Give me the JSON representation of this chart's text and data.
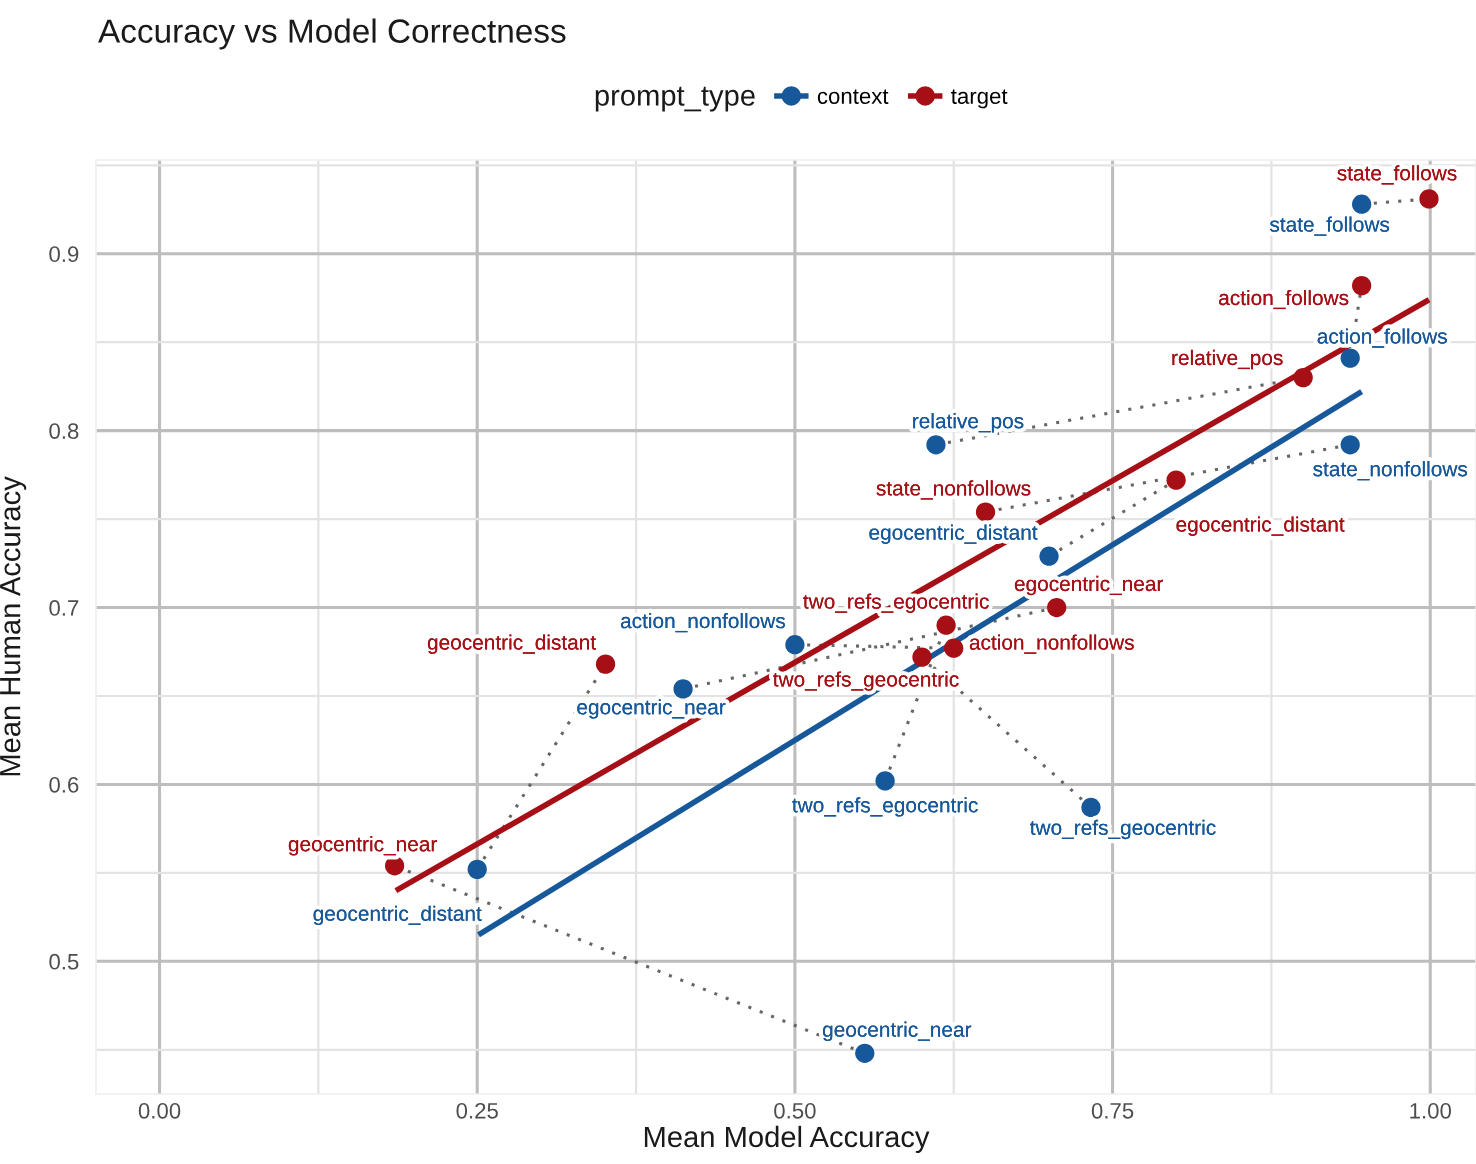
{
  "chart_data": {
    "type": "scatter",
    "title": "Accuracy vs Model Correctness",
    "xlabel": "Mean Model Accuracy",
    "ylabel": "Mean Human Accuracy",
    "legend_title": "prompt_type",
    "legend": "top",
    "grid": true,
    "xlim": [
      -0.05,
      1.036
    ],
    "ylim": [
      0.425,
      0.953
    ],
    "xticks": [
      {
        "value": 0,
        "label": "0.00"
      },
      {
        "value": 0.125,
        "label": null
      },
      {
        "value": 0.25,
        "label": "0.25"
      },
      {
        "value": 0.375,
        "label": null
      },
      {
        "value": 0.5,
        "label": "0.50"
      },
      {
        "value": 0.625,
        "label": null
      },
      {
        "value": 0.75,
        "label": "0.75"
      },
      {
        "value": 0.875,
        "label": null
      },
      {
        "value": 1,
        "label": "1.00"
      }
    ],
    "yticks": [
      {
        "value": 0.45,
        "label": null
      },
      0.5,
      {
        "value": 0.55,
        "label": null
      },
      0.6,
      {
        "value": 0.65,
        "label": null
      },
      0.7,
      {
        "value": 0.75,
        "label": null
      },
      0.8,
      {
        "value": 0.85,
        "label": null
      },
      0.9,
      {
        "value": 0.95,
        "label": null
      }
    ],
    "series": [
      {
        "type": "line",
        "color": "#666666",
        "line_style": "dotted",
        "x": [
          0.946,
          0.999
        ],
        "values": [
          0.928,
          0.931
        ]
      },
      {
        "type": "line",
        "color": "#666666",
        "line_style": "dotted",
        "x": [
          0.937,
          0.946
        ],
        "values": [
          0.841,
          0.882
        ]
      },
      {
        "type": "line",
        "color": "#666666",
        "line_style": "dotted",
        "x": [
          0.611,
          0.9
        ],
        "values": [
          0.792,
          0.83
        ]
      },
      {
        "type": "line",
        "color": "#666666",
        "line_style": "dotted",
        "x": [
          0.937,
          0.65
        ],
        "values": [
          0.792,
          0.754
        ]
      },
      {
        "type": "line",
        "color": "#666666",
        "line_style": "dotted",
        "x": [
          0.7,
          0.8
        ],
        "values": [
          0.729,
          0.772
        ]
      },
      {
        "type": "line",
        "color": "#666666",
        "line_style": "dotted",
        "x": [
          0.412,
          0.706
        ],
        "values": [
          0.654,
          0.7
        ]
      },
      {
        "type": "line",
        "color": "#666666",
        "line_style": "dotted",
        "x": [
          0.5,
          0.625
        ],
        "values": [
          0.679,
          0.677
        ]
      },
      {
        "type": "line",
        "color": "#666666",
        "line_style": "dotted",
        "x": [
          0.571,
          0.619
        ],
        "values": [
          0.602,
          0.69
        ]
      },
      {
        "type": "line",
        "color": "#666666",
        "line_style": "dotted",
        "x": [
          0.733,
          0.6
        ],
        "values": [
          0.587,
          0.672
        ]
      },
      {
        "type": "line",
        "color": "#666666",
        "line_style": "dotted",
        "x": [
          0.25,
          0.351
        ],
        "values": [
          0.552,
          0.668
        ]
      },
      {
        "type": "line",
        "color": "#666666",
        "line_style": "dotted",
        "x": [
          0.555,
          0.185
        ],
        "values": [
          0.448,
          0.554
        ]
      },
      {
        "type": "line",
        "color": "#17589a",
        "line_style": "solid",
        "x": [
          0.251,
          0.946
        ],
        "values": [
          0.515,
          0.822
        ]
      },
      {
        "type": "line",
        "color": "#a50f15",
        "line_style": "solid",
        "x": [
          0.186,
          0.999
        ],
        "values": [
          0.54,
          0.874
        ]
      },
      {
        "name": "context",
        "marker": "circle",
        "color": "#17589a",
        "x": [
          0.946,
          0.937,
          0.611,
          0.937,
          0.7,
          0.412,
          0.5,
          0.571,
          0.733,
          0.25,
          0.555
        ],
        "values": [
          0.928,
          0.841,
          0.792,
          0.792,
          0.729,
          0.654,
          0.679,
          0.602,
          0.587,
          0.552,
          0.448
        ],
        "value_labels": [
          "state_follows",
          "action_follows",
          "relative_pos",
          "state_nonfollows",
          "egocentric_distant",
          "egocentric_near",
          "action_nonfollows",
          "two_refs_egocentric",
          "two_refs_geocentric",
          "geocentric_distant",
          "geocentric_near"
        ]
      },
      {
        "name": "target",
        "marker": "circle",
        "color": "#a50f15",
        "x": [
          0.999,
          0.946,
          0.9,
          0.65,
          0.8,
          0.706,
          0.625,
          0.619,
          0.6,
          0.351,
          0.185
        ],
        "values": [
          0.931,
          0.882,
          0.83,
          0.754,
          0.772,
          0.7,
          0.677,
          0.69,
          0.672,
          0.668,
          0.554
        ],
        "value_labels": [
          "state_follows",
          "action_follows",
          "relative_pos",
          "state_nonfollows",
          "egocentric_distant",
          "egocentric_near",
          "action_nonfollows",
          "two_refs_egocentric",
          "two_refs_geocentric",
          "geocentric_distant",
          "geocentric_near"
        ]
      }
    ]
  }
}
